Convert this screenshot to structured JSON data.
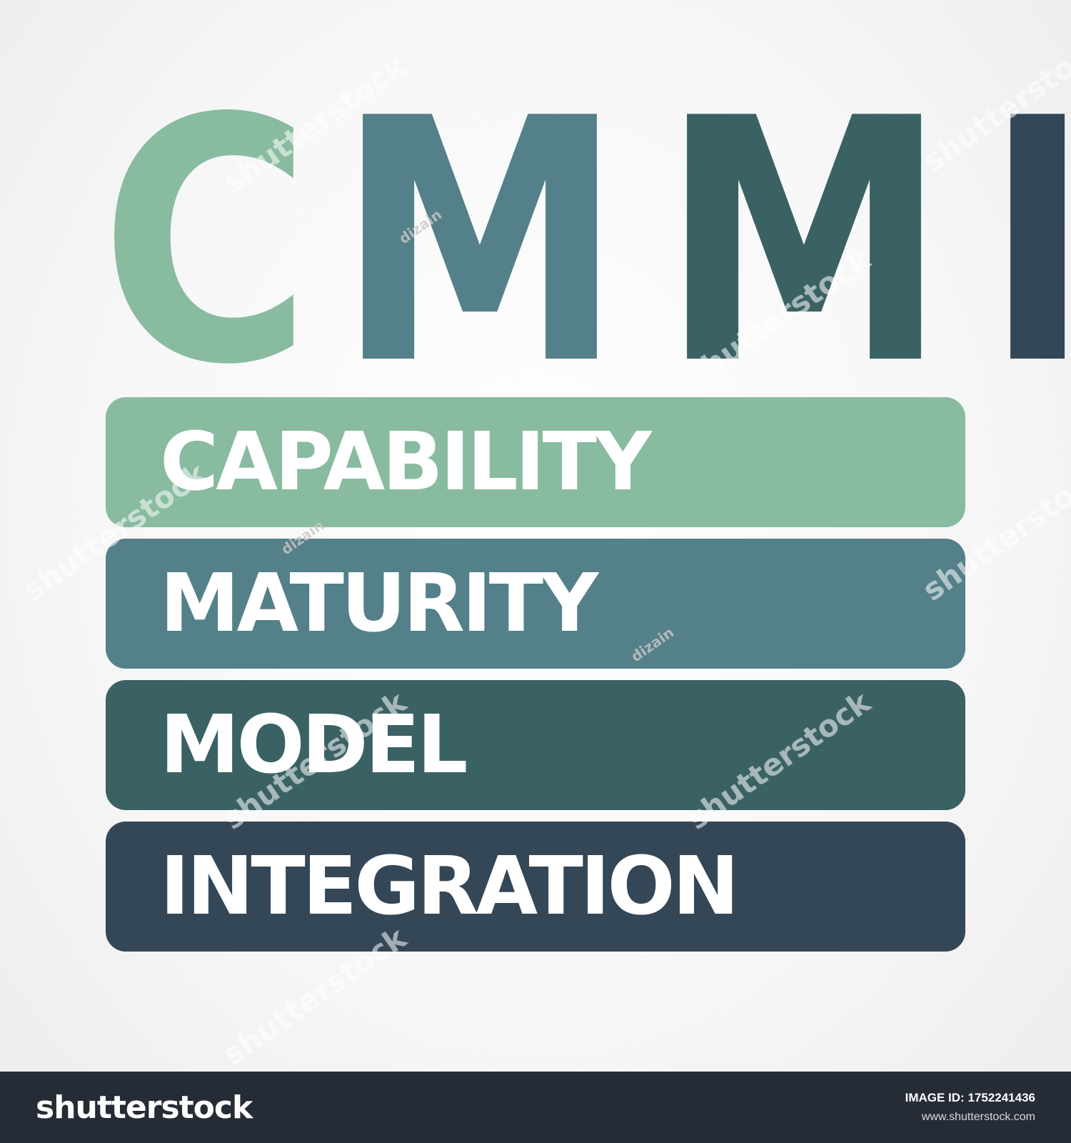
{
  "acronym": {
    "letters": [
      "C",
      "M",
      "M",
      "I"
    ],
    "colors": [
      "#88bba0",
      "#548089",
      "#3a6264",
      "#344757"
    ]
  },
  "bars": [
    {
      "label": "CAPABILITY",
      "color": "#88bba0"
    },
    {
      "label": "MATURITY",
      "color": "#548089"
    },
    {
      "label": "MODEL",
      "color": "#3a6264"
    },
    {
      "label": "INTEGRATION",
      "color": "#344757"
    }
  ],
  "watermark": {
    "brand": "shutterstock",
    "contributor": "dizain"
  },
  "footer": {
    "logo": "shutterstock",
    "image_id_label": "IMAGE ID: 1752241436",
    "url": "www.shutterstock.com"
  }
}
